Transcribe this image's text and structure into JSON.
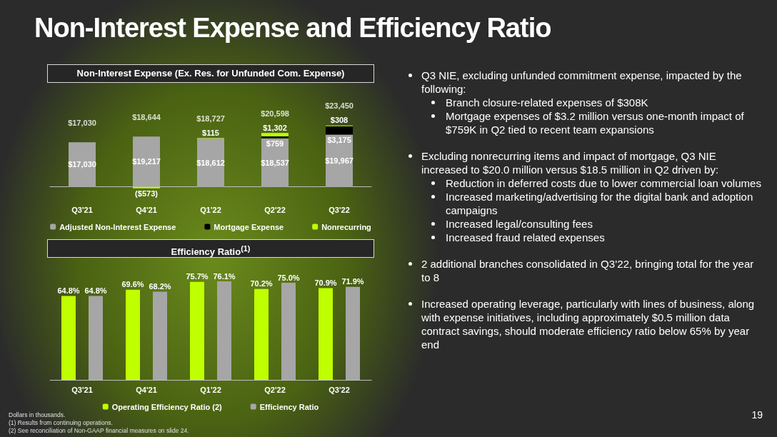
{
  "chart_data": [
    {
      "type": "other",
      "title": "Non-Interest Expense and Efficiency Ratio",
      "annotations": [
        "Dollars in thousands.",
        "(1) Results from continuing operations.",
        "(2) See reconciliation of Non-GAAP financial measures on slide 24.",
        "19"
      ]
    },
    {
      "type": "bar",
      "title": "Non-Interest Expense (Ex. Res. for Unfunded Com. Expense)",
      "categories": [
        "Q3'21",
        "Q4'21",
        "Q1'22",
        "Q2'22",
        "Q3'22"
      ],
      "stacked": true,
      "tick_labels": "x",
      "legend": "bottom",
      "series": [
        {
          "name": "Adjusted Non-Interest Expense",
          "color": "#a6a6a6",
          "values": [
            17030,
            19217,
            18612,
            18537,
            19967
          ],
          "value_labels": [
            "$17,030",
            "$19,217",
            "$18,612",
            "$18,537",
            "$19,967"
          ]
        },
        {
          "name": "Mortgage Expense",
          "color": "#000000",
          "values": [
            null,
            null,
            null,
            759,
            3175
          ],
          "value_labels": [
            null,
            null,
            null,
            "$759",
            "$3,175"
          ]
        },
        {
          "name": "Nonrecurring",
          "color": "#bfff00",
          "values": [
            null,
            -573,
            115,
            1302,
            308
          ],
          "value_labels": [
            null,
            "($573)",
            "$115",
            "$1,302",
            "$308"
          ]
        }
      ],
      "totals": [
        "$17,030",
        "$18,644",
        "$18,727",
        "$20,598",
        "$23,450"
      ]
    },
    {
      "type": "bar",
      "title": "Efficiency Ratio$^{(1)}$",
      "categories": [
        "Q3'21",
        "Q4'21",
        "Q1'22",
        "Q2'22",
        "Q3'22"
      ],
      "tick_labels": "x",
      "legend": "bottom",
      "series": [
        {
          "name": "Operating Efficiency Ratio (2)",
          "color": "#bfff00",
          "values": [
            64.8,
            69.6,
            75.7,
            70.2,
            70.9
          ],
          "value_labels": [
            "64.8%",
            "69.6%",
            "75.7%",
            "70.2%",
            "70.9%"
          ]
        },
        {
          "name": "Efficiency Ratio",
          "color": "#a6a6a6",
          "values": [
            64.8,
            68.2,
            76.1,
            75.0,
            71.9
          ],
          "value_labels": [
            "64.8%",
            "68.2%",
            "76.1%",
            "75.0%",
            "71.9%"
          ]
        }
      ]
    },
    {
      "type": "other",
      "title": "Q3 NIE, excluding unfunded commitment expense, impacted by the following:",
      "annotations": [
        "Branch closure-related expenses of $308K",
        "Mortgage expenses of $3.2 million versus one-month impact of $759K in Q2 tied to recent team expansions"
      ]
    },
    {
      "type": "other",
      "title": "Excluding nonrecurring items and impact of mortgage, Q3 NIE increased to $20.0 million versus $18.5 million in Q2 driven by:",
      "annotations": [
        "Reduction in deferred costs due to lower commercial loan volumes",
        "Increased marketing/advertising for the digital bank and adoption campaigns",
        "Increased legal/consulting fees",
        "Increased fraud related expenses"
      ]
    },
    {
      "type": "other",
      "title": "2 additional branches consolidated in Q3’22, bringing total for the year to 8"
    },
    {
      "type": "other",
      "title": "Increased operating leverage, particularly with lines of business, along with expense initiatives, including approximately $0.5 million data contract savings, should moderate efficiency ratio below 65% by year end"
    }
  ]
}
